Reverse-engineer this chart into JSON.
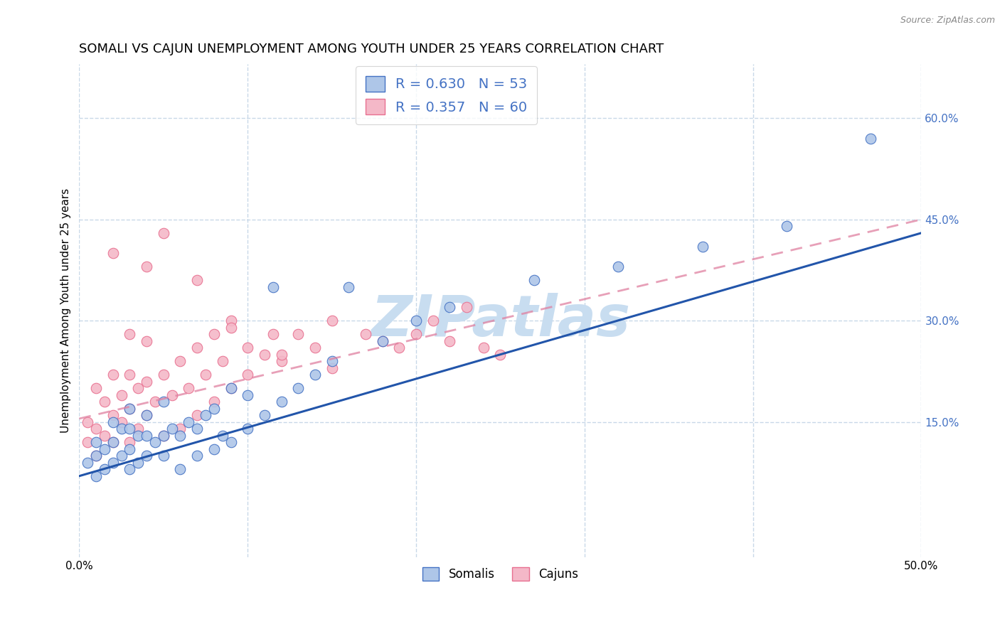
{
  "title": "SOMALI VS CAJUN UNEMPLOYMENT AMONG YOUTH UNDER 25 YEARS CORRELATION CHART",
  "source": "Source: ZipAtlas.com",
  "ylabel": "Unemployment Among Youth under 25 years",
  "xlim": [
    0.0,
    0.5
  ],
  "ylim": [
    -0.05,
    0.68
  ],
  "x_ticks": [
    0.0,
    0.1,
    0.2,
    0.3,
    0.4,
    0.5
  ],
  "x_tick_labels": [
    "0.0%",
    "",
    "",
    "",
    "",
    "50.0%"
  ],
  "y_ticks": [
    0.15,
    0.3,
    0.45,
    0.6
  ],
  "y_tick_labels": [
    "15.0%",
    "30.0%",
    "45.0%",
    "60.0%"
  ],
  "somali_fill_color": "#aec6e8",
  "cajun_fill_color": "#f4b8c8",
  "somali_edge_color": "#4472c4",
  "cajun_edge_color": "#e87090",
  "somali_line_color": "#2255aa",
  "cajun_line_color": "#e080a0",
  "legend_color": "#4472c4",
  "watermark_color": "#c8ddf0",
  "grid_color": "#c8d8e8",
  "background_color": "#ffffff",
  "title_fontsize": 13,
  "axis_label_fontsize": 11,
  "tick_fontsize": 11,
  "legend_fontsize": 14,
  "somali_R": 0.63,
  "somali_N": 53,
  "cajun_R": 0.357,
  "cajun_N": 60,
  "somali_line_start_y": 0.07,
  "somali_line_end_y": 0.43,
  "cajun_line_start_y": 0.155,
  "cajun_line_end_y": 0.45,
  "somali_x": [
    0.005,
    0.01,
    0.01,
    0.01,
    0.015,
    0.015,
    0.02,
    0.02,
    0.02,
    0.025,
    0.025,
    0.03,
    0.03,
    0.03,
    0.03,
    0.035,
    0.035,
    0.04,
    0.04,
    0.04,
    0.045,
    0.05,
    0.05,
    0.05,
    0.055,
    0.06,
    0.06,
    0.065,
    0.07,
    0.07,
    0.075,
    0.08,
    0.08,
    0.085,
    0.09,
    0.09,
    0.1,
    0.1,
    0.11,
    0.115,
    0.12,
    0.13,
    0.14,
    0.15,
    0.16,
    0.18,
    0.2,
    0.22,
    0.27,
    0.32,
    0.37,
    0.42,
    0.47
  ],
  "somali_y": [
    0.09,
    0.07,
    0.1,
    0.12,
    0.08,
    0.11,
    0.09,
    0.12,
    0.15,
    0.1,
    0.14,
    0.08,
    0.11,
    0.14,
    0.17,
    0.09,
    0.13,
    0.1,
    0.13,
    0.16,
    0.12,
    0.1,
    0.13,
    0.18,
    0.14,
    0.08,
    0.13,
    0.15,
    0.1,
    0.14,
    0.16,
    0.11,
    0.17,
    0.13,
    0.12,
    0.2,
    0.14,
    0.19,
    0.16,
    0.35,
    0.18,
    0.2,
    0.22,
    0.24,
    0.35,
    0.27,
    0.3,
    0.32,
    0.36,
    0.38,
    0.41,
    0.44,
    0.57
  ],
  "cajun_x": [
    0.005,
    0.005,
    0.01,
    0.01,
    0.01,
    0.015,
    0.015,
    0.02,
    0.02,
    0.02,
    0.025,
    0.025,
    0.03,
    0.03,
    0.03,
    0.03,
    0.035,
    0.035,
    0.04,
    0.04,
    0.04,
    0.045,
    0.05,
    0.05,
    0.055,
    0.06,
    0.06,
    0.065,
    0.07,
    0.07,
    0.075,
    0.08,
    0.08,
    0.085,
    0.09,
    0.09,
    0.1,
    0.1,
    0.11,
    0.115,
    0.12,
    0.13,
    0.14,
    0.15,
    0.15,
    0.17,
    0.18,
    0.19,
    0.2,
    0.21,
    0.22,
    0.23,
    0.24,
    0.25,
    0.02,
    0.04,
    0.05,
    0.07,
    0.09,
    0.12
  ],
  "cajun_y": [
    0.12,
    0.15,
    0.1,
    0.14,
    0.2,
    0.13,
    0.18,
    0.12,
    0.16,
    0.22,
    0.15,
    0.19,
    0.12,
    0.17,
    0.22,
    0.28,
    0.14,
    0.2,
    0.16,
    0.21,
    0.27,
    0.18,
    0.13,
    0.22,
    0.19,
    0.14,
    0.24,
    0.2,
    0.16,
    0.26,
    0.22,
    0.18,
    0.28,
    0.24,
    0.2,
    0.3,
    0.22,
    0.26,
    0.25,
    0.28,
    0.24,
    0.28,
    0.26,
    0.23,
    0.3,
    0.28,
    0.27,
    0.26,
    0.28,
    0.3,
    0.27,
    0.32,
    0.26,
    0.25,
    0.4,
    0.38,
    0.43,
    0.36,
    0.29,
    0.25
  ]
}
